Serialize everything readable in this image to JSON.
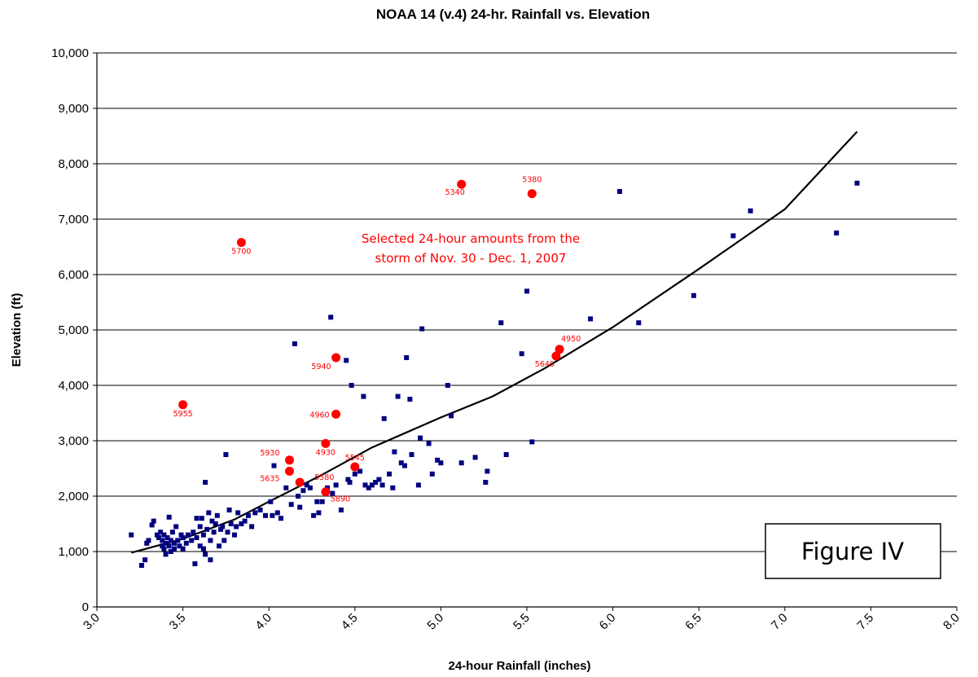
{
  "chart_data": {
    "type": "scatter",
    "title": "NOAA 14 (v.4) 24-hr. Rainfall vs. Elevation",
    "xlabel": "24-hour Rainfall (inches)",
    "ylabel": "Elevation (ft)",
    "xlim": [
      3.0,
      8.0
    ],
    "ylim": [
      0,
      10000
    ],
    "x_ticks": [
      "3.0",
      "3.5",
      "4.0",
      "4.5",
      "5.0",
      "5.5",
      "6.0",
      "6.5",
      "7.0",
      "7.5",
      "8.0"
    ],
    "y_ticks": [
      "0",
      "1,000",
      "2,000",
      "3,000",
      "4,000",
      "5,000",
      "6,000",
      "7,000",
      "8,000",
      "9,000",
      "10,000"
    ],
    "grid": "horizontal",
    "colors": {
      "stations": "#000080",
      "selected": "#ff0000",
      "trend": "#000000"
    },
    "annotation": [
      "Selected 24-hour amounts from the",
      "storm of Nov. 30 - Dec. 1, 2007"
    ],
    "figure_label": "Figure IV",
    "series": [
      {
        "marker": "square",
        "points": [
          [
            3.2,
            1300
          ],
          [
            3.26,
            750
          ],
          [
            3.28,
            850
          ],
          [
            3.29,
            1150
          ],
          [
            3.3,
            1200
          ],
          [
            3.32,
            1480
          ],
          [
            3.33,
            1550
          ],
          [
            3.35,
            1300
          ],
          [
            3.36,
            1250
          ],
          [
            3.37,
            1350
          ],
          [
            3.38,
            1100
          ],
          [
            3.38,
            1200
          ],
          [
            3.39,
            1050
          ],
          [
            3.39,
            1300
          ],
          [
            3.4,
            950
          ],
          [
            3.4,
            1150
          ],
          [
            3.41,
            1250
          ],
          [
            3.42,
            1620
          ],
          [
            3.42,
            1100
          ],
          [
            3.43,
            1000
          ],
          [
            3.43,
            1200
          ],
          [
            3.44,
            1350
          ],
          [
            3.45,
            1150
          ],
          [
            3.45,
            1050
          ],
          [
            3.46,
            1450
          ],
          [
            3.47,
            1200
          ],
          [
            3.48,
            1100
          ],
          [
            3.49,
            1300
          ],
          [
            3.5,
            1050
          ],
          [
            3.5,
            1250
          ],
          [
            3.52,
            1150
          ],
          [
            3.53,
            1300
          ],
          [
            3.55,
            1200
          ],
          [
            3.56,
            1350
          ],
          [
            3.57,
            780
          ],
          [
            3.58,
            1600
          ],
          [
            3.58,
            1250
          ],
          [
            3.6,
            1100
          ],
          [
            3.6,
            1450
          ],
          [
            3.61,
            1600
          ],
          [
            3.62,
            1050
          ],
          [
            3.62,
            1300
          ],
          [
            3.63,
            2250
          ],
          [
            3.63,
            950
          ],
          [
            3.64,
            1400
          ],
          [
            3.65,
            1700
          ],
          [
            3.66,
            1200
          ],
          [
            3.66,
            850
          ],
          [
            3.67,
            1550
          ],
          [
            3.68,
            1350
          ],
          [
            3.69,
            1500
          ],
          [
            3.7,
            1650
          ],
          [
            3.71,
            1100
          ],
          [
            3.72,
            1400
          ],
          [
            3.73,
            1450
          ],
          [
            3.74,
            1200
          ],
          [
            3.75,
            2750
          ],
          [
            3.76,
            1350
          ],
          [
            3.77,
            1750
          ],
          [
            3.78,
            1500
          ],
          [
            3.8,
            1300
          ],
          [
            3.81,
            1450
          ],
          [
            3.82,
            1700
          ],
          [
            3.84,
            1500
          ],
          [
            3.86,
            1550
          ],
          [
            3.88,
            1650
          ],
          [
            3.9,
            1450
          ],
          [
            3.92,
            1700
          ],
          [
            3.95,
            1750
          ],
          [
            3.98,
            1650
          ],
          [
            4.01,
            1900
          ],
          [
            4.02,
            1650
          ],
          [
            4.03,
            2550
          ],
          [
            4.05,
            1700
          ],
          [
            4.07,
            1600
          ],
          [
            4.1,
            2150
          ],
          [
            4.13,
            1850
          ],
          [
            4.15,
            4750
          ],
          [
            4.17,
            2000
          ],
          [
            4.18,
            1800
          ],
          [
            4.2,
            2100
          ],
          [
            4.22,
            2200
          ],
          [
            4.24,
            2150
          ],
          [
            4.26,
            1650
          ],
          [
            4.28,
            1900
          ],
          [
            4.29,
            1700
          ],
          [
            4.31,
            1900
          ],
          [
            4.34,
            2150
          ],
          [
            4.36,
            5230
          ],
          [
            4.37,
            2050
          ],
          [
            4.39,
            2200
          ],
          [
            4.42,
            1750
          ],
          [
            4.45,
            4450
          ],
          [
            4.46,
            2300
          ],
          [
            4.47,
            2250
          ],
          [
            4.48,
            4000
          ],
          [
            4.5,
            2400
          ],
          [
            4.53,
            2450
          ],
          [
            4.55,
            3800
          ],
          [
            4.56,
            2200
          ],
          [
            4.58,
            2150
          ],
          [
            4.6,
            2200
          ],
          [
            4.62,
            2250
          ],
          [
            4.64,
            2300
          ],
          [
            4.66,
            2200
          ],
          [
            4.67,
            3400
          ],
          [
            4.7,
            2400
          ],
          [
            4.72,
            2150
          ],
          [
            4.73,
            2800
          ],
          [
            4.75,
            3800
          ],
          [
            4.77,
            2600
          ],
          [
            4.79,
            2550
          ],
          [
            4.8,
            4500
          ],
          [
            4.82,
            3750
          ],
          [
            4.83,
            2750
          ],
          [
            4.87,
            2200
          ],
          [
            4.88,
            3050
          ],
          [
            4.89,
            5020
          ],
          [
            4.93,
            2950
          ],
          [
            4.95,
            2400
          ],
          [
            4.98,
            2650
          ],
          [
            5.0,
            2600
          ],
          [
            5.04,
            4000
          ],
          [
            5.06,
            3450
          ],
          [
            5.12,
            2600
          ],
          [
            5.2,
            2700
          ],
          [
            5.26,
            2250
          ],
          [
            5.27,
            2450
          ],
          [
            5.35,
            5130
          ],
          [
            5.38,
            2750
          ],
          [
            5.47,
            4570
          ],
          [
            5.5,
            5700
          ],
          [
            5.53,
            2980
          ],
          [
            5.87,
            5200
          ],
          [
            6.04,
            7500
          ],
          [
            6.15,
            5130
          ],
          [
            6.47,
            5620
          ],
          [
            6.7,
            6700
          ],
          [
            6.8,
            7150
          ],
          [
            7.3,
            6750
          ],
          [
            7.42,
            7650
          ]
        ]
      },
      {
        "marker": "circle",
        "points": [
          {
            "x": 3.5,
            "y": 3650,
            "label": "5955"
          },
          {
            "x": 3.84,
            "y": 6580,
            "label": "5700"
          },
          {
            "x": 4.12,
            "y": 2650,
            "label": "5930"
          },
          {
            "x": 4.12,
            "y": 2450,
            "label": "5635"
          },
          {
            "x": 4.18,
            "y": 2250,
            "label": "5580"
          },
          {
            "x": 4.33,
            "y": 2950,
            "label": "4930"
          },
          {
            "x": 4.33,
            "y": 2080,
            "label": "5890"
          },
          {
            "x": 4.39,
            "y": 3480,
            "label": "4960"
          },
          {
            "x": 4.39,
            "y": 4500,
            "label": "5940"
          },
          {
            "x": 4.5,
            "y": 2530,
            "label": "5545"
          },
          {
            "x": 5.12,
            "y": 7630,
            "label": "5340"
          },
          {
            "x": 5.53,
            "y": 7460,
            "label": "5380"
          },
          {
            "x": 5.67,
            "y": 4530,
            "label": "5640"
          },
          {
            "x": 5.69,
            "y": 4650,
            "label": "4950"
          }
        ]
      }
    ],
    "trendline": [
      [
        3.2,
        980
      ],
      [
        3.5,
        1230
      ],
      [
        3.8,
        1580
      ],
      [
        4.0,
        1900
      ],
      [
        4.3,
        2370
      ],
      [
        4.6,
        2880
      ],
      [
        5.0,
        3420
      ],
      [
        5.3,
        3800
      ],
      [
        5.6,
        4300
      ],
      [
        6.0,
        5050
      ],
      [
        6.5,
        6100
      ],
      [
        7.0,
        7180
      ],
      [
        7.42,
        8580
      ]
    ]
  }
}
